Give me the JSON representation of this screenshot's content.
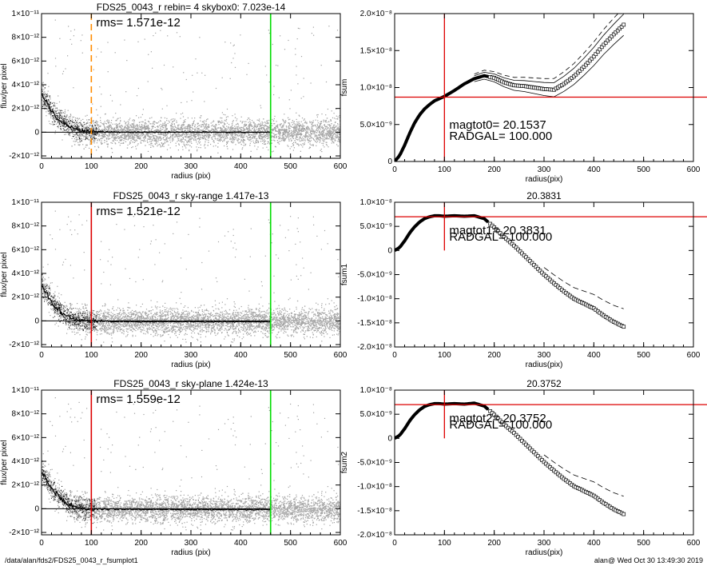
{
  "window": {
    "footer_left": "/data/alan/fds2/FDS25_0043_r_fsumplot1",
    "footer_right": "alan@  Wed Oct 30 13:49:30 2019"
  },
  "chart_data": [
    {
      "id": "left-top",
      "type": "scatter",
      "title": "FDS25_0043_r rebin= 4    skybox0:  7.023e-14",
      "xlabel": "radius (pix)",
      "ylabel": "flux/per pixel",
      "xlim": [
        0,
        600
      ],
      "ylim": [
        -2.2e-12,
        1e-11
      ],
      "xticks": [
        0,
        100,
        200,
        300,
        400,
        500,
        600
      ],
      "xtick_labels": [
        "0",
        "100",
        "200",
        "300",
        "400",
        "500",
        "600"
      ],
      "yticks": [
        -2e-12,
        0,
        2e-12,
        4e-12,
        6e-12,
        8e-12,
        1e-11
      ],
      "ytick_labels": [
        "-2×10⁻¹²",
        "0",
        "2×10⁻¹²",
        "4×10⁻¹²",
        "6×10⁻¹²",
        "8×10⁻¹²",
        "1×10⁻¹¹"
      ],
      "annotation": "rms= 1.571e-12",
      "vlines": [
        {
          "x": 100,
          "color": "#ff8c00",
          "dashed": true
        },
        {
          "x": 460,
          "color": "#00dd00",
          "dashed": false
        }
      ],
      "scatter_color": "#a0a0a0",
      "profile": {
        "x": [
          0,
          5,
          10,
          15,
          20,
          30,
          40,
          50,
          60,
          70,
          80,
          90,
          100,
          120,
          150,
          200,
          300,
          400,
          460
        ],
        "y": [
          3.2e-12,
          2.9e-12,
          2.6e-12,
          2.2e-12,
          1.8e-12,
          1.3e-12,
          9e-13,
          6e-13,
          4e-13,
          2.5e-13,
          1.5e-13,
          8e-14,
          5e-14,
          2e-14,
          1e-14,
          0,
          0,
          0,
          0
        ]
      },
      "grid": false
    },
    {
      "id": "left-mid",
      "type": "scatter",
      "title": "FDS25_0043_r sky-range  1.417e-13",
      "xlabel": "radius (pix)",
      "ylabel": "flux/per pixel",
      "xlim": [
        0,
        600
      ],
      "ylim": [
        -2.2e-12,
        1e-11
      ],
      "xticks": [
        0,
        100,
        200,
        300,
        400,
        500,
        600
      ],
      "xtick_labels": [
        "0",
        "100",
        "200",
        "300",
        "400",
        "500",
        "600"
      ],
      "yticks": [
        -2e-12,
        0,
        2e-12,
        4e-12,
        6e-12,
        8e-12,
        1e-11
      ],
      "ytick_labels": [
        "-2×10⁻¹²",
        "0",
        "2×10⁻¹²",
        "4×10⁻¹²",
        "6×10⁻¹²",
        "8×10⁻¹²",
        "1×10⁻¹¹"
      ],
      "annotation": "rms= 1.521e-12",
      "vlines": [
        {
          "x": 100,
          "color": "#dd0000",
          "dashed": false
        },
        {
          "x": 460,
          "color": "#00dd00",
          "dashed": false
        }
      ],
      "scatter_color": "#a0a0a0",
      "profile": {
        "x": [
          0,
          5,
          10,
          15,
          20,
          30,
          40,
          50,
          60,
          70,
          80,
          90,
          100,
          120,
          150,
          200,
          300,
          400,
          460
        ],
        "y": [
          3e-12,
          2.7e-12,
          2.4e-12,
          2e-12,
          1.6e-12,
          1.1e-12,
          7e-13,
          4.5e-13,
          2.5e-13,
          1.2e-13,
          5e-14,
          0,
          -3e-14,
          -5e-14,
          -6e-14,
          -7e-14,
          -8e-14,
          -8e-14,
          -8e-14
        ]
      },
      "grid": false
    },
    {
      "id": "left-bot",
      "type": "scatter",
      "title": "FDS25_0043_r sky-plane  1.424e-13",
      "xlabel": "radius (pix)",
      "ylabel": "flux/per pixel",
      "xlim": [
        0,
        600
      ],
      "ylim": [
        -2.2e-12,
        1e-11
      ],
      "xticks": [
        0,
        100,
        200,
        300,
        400,
        500,
        600
      ],
      "xtick_labels": [
        "0",
        "100",
        "200",
        "300",
        "400",
        "500",
        "600"
      ],
      "yticks": [
        -2e-12,
        0,
        2e-12,
        4e-12,
        6e-12,
        8e-12,
        1e-11
      ],
      "ytick_labels": [
        "-2×10⁻¹²",
        "0",
        "2×10⁻¹²",
        "4×10⁻¹²",
        "6×10⁻¹²",
        "8×10⁻¹²",
        "1×10⁻¹¹"
      ],
      "annotation": "rms= 1.559e-12",
      "vlines": [
        {
          "x": 100,
          "color": "#dd0000",
          "dashed": false
        },
        {
          "x": 460,
          "color": "#00dd00",
          "dashed": false
        }
      ],
      "scatter_color": "#a0a0a0",
      "profile": {
        "x": [
          0,
          5,
          10,
          15,
          20,
          30,
          40,
          50,
          60,
          70,
          80,
          90,
          100,
          120,
          150,
          200,
          300,
          400,
          460
        ],
        "y": [
          3.1e-12,
          2.8e-12,
          2.5e-12,
          2.1e-12,
          1.7e-12,
          1.2e-12,
          8e-13,
          5e-13,
          3e-13,
          1.5e-13,
          6e-14,
          1e-14,
          -2e-14,
          -4e-14,
          -5e-14,
          -6e-14,
          -7e-14,
          -7e-14,
          -7e-14
        ]
      },
      "grid": false
    },
    {
      "id": "right-top",
      "type": "line",
      "title": "",
      "xlabel": "radius(pix)",
      "ylabel": "fsum",
      "xlim": [
        0,
        600
      ],
      "ylim": [
        0,
        2e-08
      ],
      "xticks": [
        0,
        100,
        200,
        300,
        400,
        500,
        600
      ],
      "xtick_labels": [
        "0",
        "100",
        "200",
        "300",
        "400",
        "500",
        "600"
      ],
      "yticks": [
        0,
        5e-09,
        1e-08,
        1.5e-08,
        2e-08
      ],
      "ytick_labels": [
        "0",
        "5.0×10⁻⁹",
        "1.0×10⁻⁸",
        "1.5×10⁻⁸",
        "2.0×10⁻⁸"
      ],
      "hline": 8.7e-09,
      "vline": 100,
      "text_lines": [
        "magtot0=       20.1537",
        "RADGAL=      100.000"
      ],
      "series": {
        "x": [
          0,
          10,
          20,
          30,
          40,
          50,
          60,
          70,
          80,
          90,
          100,
          120,
          140,
          160,
          180,
          200,
          220,
          240,
          260,
          280,
          300,
          320,
          340,
          360,
          380,
          400,
          420,
          440,
          460
        ],
        "y": [
          0,
          8e-10,
          2.2e-09,
          3.8e-09,
          5.2e-09,
          6.3e-09,
          7.1e-09,
          7.7e-09,
          8.2e-09,
          8.5e-09,
          8.8e-09,
          9.6e-09,
          1.05e-08,
          1.12e-08,
          1.16e-08,
          1.13e-08,
          1.07e-08,
          1.03e-08,
          1.02e-08,
          1e-08,
          9.8e-09,
          9.7e-09,
          1.05e-08,
          1.15e-08,
          1.28e-08,
          1.42e-08,
          1.58e-08,
          1.72e-08,
          1.85e-08
        ]
      },
      "envelope_offset": 6e-10
    },
    {
      "id": "right-mid",
      "type": "line",
      "title": "20.3831",
      "xlabel": "radius(pix)",
      "ylabel": "fsum1",
      "xlim": [
        0,
        600
      ],
      "ylim": [
        -2e-08,
        1e-08
      ],
      "xticks": [
        0,
        100,
        200,
        300,
        400,
        500,
        600
      ],
      "xtick_labels": [
        "0",
        "100",
        "200",
        "300",
        "400",
        "500",
        "600"
      ],
      "yticks": [
        -2e-08,
        -1.5e-08,
        -1e-08,
        -5e-09,
        0,
        5e-09,
        1e-08
      ],
      "ytick_labels": [
        "-2.0×10⁻⁸",
        "-1.5×10⁻⁸",
        "-1.0×10⁻⁸",
        "-5.0×10⁻⁹",
        "0",
        "5.0×10⁻⁹",
        "1.0×10⁻⁸"
      ],
      "hline": 7e-09,
      "vline": 100,
      "vline_range": [
        0,
        1e-08
      ],
      "text_lines": [
        "magtot1=       20.3831",
        "RADGAL=      100.000"
      ],
      "series": {
        "x": [
          0,
          10,
          20,
          30,
          40,
          50,
          60,
          70,
          80,
          90,
          100,
          120,
          140,
          160,
          180,
          200,
          220,
          240,
          260,
          280,
          300,
          320,
          340,
          360,
          380,
          400,
          420,
          440,
          460
        ],
        "y": [
          0,
          6e-10,
          2e-09,
          3.6e-09,
          4.9e-09,
          5.9e-09,
          6.6e-09,
          7e-09,
          7.2e-09,
          7.2e-09,
          7.1e-09,
          7.2e-09,
          7.1e-09,
          7.2e-09,
          6.6e-09,
          4.8e-09,
          2.8e-09,
          1e-09,
          -1e-09,
          -3e-09,
          -5e-09,
          -6.8e-09,
          -8.5e-09,
          -1e-08,
          -1.1e-08,
          -1.2e-08,
          -1.35e-08,
          -1.48e-08,
          -1.58e-08
        ]
      },
      "dashed_offset": 2.5e-09
    },
    {
      "id": "right-bot",
      "type": "line",
      "title": "20.3752",
      "xlabel": "radius(pix)",
      "ylabel": "fsum2",
      "xlim": [
        0,
        600
      ],
      "ylim": [
        -2e-08,
        1e-08
      ],
      "xticks": [
        0,
        100,
        200,
        300,
        400,
        500,
        600
      ],
      "xtick_labels": [
        "0",
        "100",
        "200",
        "300",
        "400",
        "500",
        "600"
      ],
      "yticks": [
        -2e-08,
        -1.5e-08,
        -1e-08,
        -5e-09,
        0,
        5e-09,
        1e-08
      ],
      "ytick_labels": [
        "-2.0×10⁻⁸",
        "-1.5×10⁻⁸",
        "-1.0×10⁻⁸",
        "-5.0×10⁻⁹",
        "0",
        "5.0×10⁻⁹",
        "1.0×10⁻⁸"
      ],
      "hline": 7e-09,
      "vline": 100,
      "vline_range": [
        0,
        1e-08
      ],
      "text_lines": [
        "magtot2=       20.3752",
        "RADGAL=      100.000"
      ],
      "series": {
        "x": [
          0,
          10,
          20,
          30,
          40,
          50,
          60,
          70,
          80,
          90,
          100,
          120,
          140,
          160,
          180,
          200,
          220,
          240,
          260,
          280,
          300,
          320,
          340,
          360,
          380,
          400,
          420,
          440,
          460
        ],
        "y": [
          0,
          6e-10,
          2e-09,
          3.6e-09,
          4.9e-09,
          5.9e-09,
          6.6e-09,
          7e-09,
          7.2e-09,
          7.2e-09,
          7.1e-09,
          7.2e-09,
          7.1e-09,
          7.3e-09,
          6.7e-09,
          4.9e-09,
          2.9e-09,
          1.1e-09,
          -9e-10,
          -2.9e-09,
          -4.9e-09,
          -6.7e-09,
          -8.4e-09,
          -9.9e-09,
          -1.09e-08,
          -1.19e-08,
          -1.34e-08,
          -1.47e-08,
          -1.57e-08
        ]
      },
      "dashed_offset": 2.5e-09
    }
  ]
}
